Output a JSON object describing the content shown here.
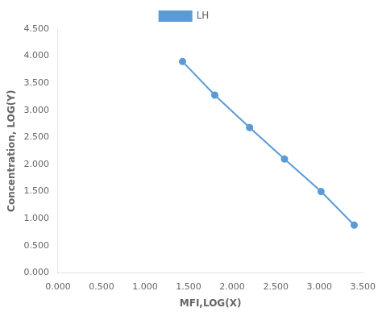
{
  "chart_data": {
    "type": "line",
    "xlabel": "MFI,LOG(X)",
    "ylabel": "Concentration, LOG(Y)",
    "x": [
      1.43,
      1.8,
      2.2,
      2.6,
      3.02,
      3.4
    ],
    "series": [
      {
        "name": "LH",
        "color": "#5B9BD5",
        "marker": "circle",
        "values": [
          3.9,
          3.28,
          2.68,
          2.1,
          1.5,
          0.88
        ]
      }
    ],
    "xlim": [
      0.0,
      3.5
    ],
    "ylim": [
      0.0,
      4.5
    ],
    "xticks": [
      {
        "value": 0,
        "label": "0.000"
      },
      {
        "value": 0.5,
        "label": "0.500"
      },
      {
        "value": 1,
        "label": "1.000"
      },
      {
        "value": 1.5,
        "label": "1.500"
      },
      {
        "value": 2,
        "label": "2.000"
      },
      {
        "value": 2.5,
        "label": "2.500"
      },
      {
        "value": 3,
        "label": "3.000"
      },
      {
        "value": 3.5,
        "label": "3.500"
      }
    ],
    "yticks": [
      {
        "value": 0,
        "label": "0.000"
      },
      {
        "value": 0.5,
        "label": "0.500"
      },
      {
        "value": 1,
        "label": "1.000"
      },
      {
        "value": 1.5,
        "label": "1.500"
      },
      {
        "value": 2,
        "label": "2.000"
      },
      {
        "value": 2.5,
        "label": "2.500"
      },
      {
        "value": 3,
        "label": "3.000"
      },
      {
        "value": 3.5,
        "label": "3.500"
      },
      {
        "value": 4,
        "label": "4.000"
      },
      {
        "value": 4.5,
        "label": "4.500"
      }
    ],
    "grid": false,
    "legend": "top"
  }
}
